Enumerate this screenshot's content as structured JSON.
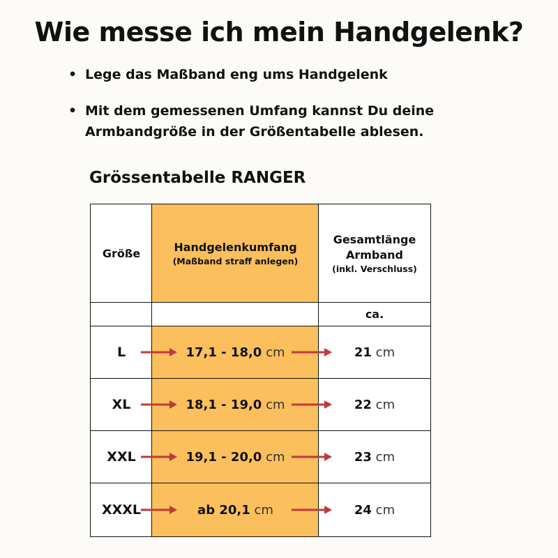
{
  "title": "Wie messe ich mein Handgelenk?",
  "bullets": [
    "Lege das Maßband eng ums Handgelenk",
    "Mit dem gemessenen Umfang kannst Du deine Armbandgröße in der Größentabelle ablesen."
  ],
  "subtitle": "Grössentabelle RANGER",
  "table": {
    "headers": {
      "size": "Größe",
      "wrist": "Handgelenkumfang",
      "wrist_note": "(Maßband straff anlegen)",
      "length": "Gesamtlänge Armband",
      "length_note": "(inkl. Verschluss)",
      "length_sub": "ca."
    },
    "rows": [
      {
        "size": "L",
        "wrist": "17,1 - 18,0",
        "length": "21"
      },
      {
        "size": "XL",
        "wrist": "18,1 - 19,0",
        "length": "22"
      },
      {
        "size": "XXL",
        "wrist": "19,1 - 20,0",
        "length": "23"
      },
      {
        "size": "XXXL",
        "wrist": "ab 20,1",
        "length": "24"
      }
    ],
    "unit": "cm"
  },
  "colors": {
    "highlight": "#fbbf5d",
    "arrow": "#c0393b",
    "background": "#fcfbf7"
  }
}
